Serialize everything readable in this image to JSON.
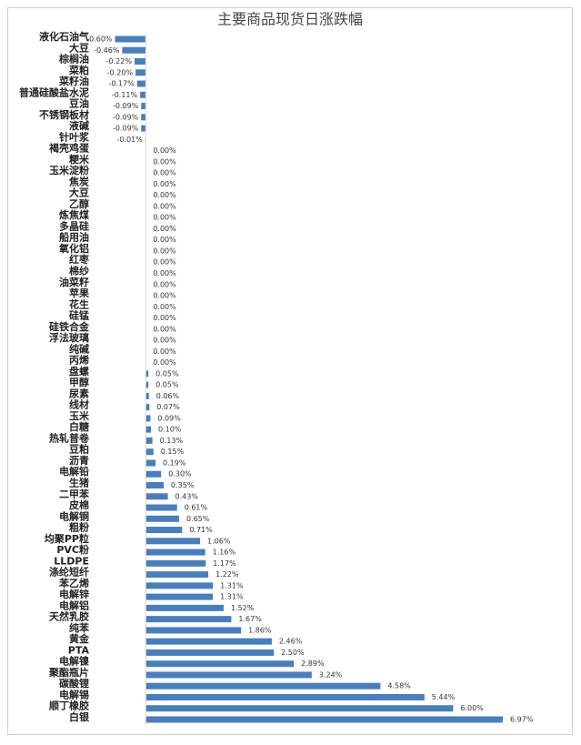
{
  "chart_data": {
    "type": "barh",
    "title": "主要商品现货日涨跌幅",
    "color": "#4a7ebb",
    "categories": [
      "液化石油气",
      "大豆",
      "棕榈油",
      "菜粕",
      "菜籽油",
      "普通硅酸盐水泥",
      "豆油",
      "不锈钢板材",
      "液碱",
      "针叶浆",
      "褐壳鸡蛋",
      "粳米",
      "玉米淀粉",
      "焦炭",
      "大豆",
      "乙醇",
      "炼焦煤",
      "多晶硅",
      "船用油",
      "氧化铝",
      "红枣",
      "棉纱",
      "油菜籽",
      "苹果",
      "花生",
      "硅锰",
      "硅铁合金",
      "浮法玻璃",
      "纯碱",
      "丙烯",
      "盘螺",
      "甲醇",
      "尿素",
      "线材",
      "玉米",
      "白糖",
      "热轧普卷",
      "豆粕",
      "沥青",
      "电解铅",
      "生猪",
      "二甲苯",
      "皮棉",
      "电解铜",
      "粗粉",
      "均聚PP粒",
      "PVC粉",
      "LLDPE",
      "涤纶短纤",
      "苯乙烯",
      "电解锌",
      "电解铝",
      "天然乳胶",
      "纯苯",
      "黄金",
      "PTA",
      "电解镍",
      "聚酯瓶片",
      "碳酸锂",
      "电解锡",
      "顺丁橡胶",
      "白银"
    ],
    "values": [
      -0.6,
      -0.46,
      -0.22,
      -0.2,
      -0.17,
      -0.11,
      -0.09,
      -0.09,
      -0.09,
      -0.01,
      0,
      0,
      0,
      0,
      0,
      0,
      0,
      0,
      0,
      0,
      0,
      0,
      0,
      0,
      0,
      0,
      0,
      0,
      0,
      0,
      0.05,
      0.05,
      0.06,
      0.07,
      0.09,
      0.1,
      0.13,
      0.15,
      0.19,
      0.3,
      0.35,
      0.43,
      0.61,
      0.65,
      0.71,
      1.06,
      1.16,
      1.17,
      1.22,
      1.31,
      1.31,
      1.52,
      1.67,
      1.86,
      2.46,
      2.5,
      2.89,
      3.24,
      4.58,
      5.44,
      6.0,
      6.97
    ],
    "value_labels": [
      "-0.60%",
      "-0.46%",
      "-0.22%",
      "-0.20%",
      "-0.17%",
      "-0.11%",
      "-0.09%",
      "-0.09%",
      "-0.09%",
      "-0.01%",
      "0.00%",
      "0.00%",
      "0.00%",
      "0.00%",
      "0.00%",
      "0.00%",
      "0.00%",
      "0.00%",
      "0.00%",
      "0.00%",
      "0.00%",
      "0.00%",
      "0.00%",
      "0.00%",
      "0.00%",
      "0.00%",
      "0.00%",
      "0.00%",
      "0.00%",
      "0.00%",
      "0.05%",
      "0.05%",
      "0.06%",
      "0.07%",
      "0.09%",
      "0.10%",
      "0.13%",
      "0.15%",
      "0.19%",
      "0.30%",
      "0.35%",
      "0.43%",
      "0.61%",
      "0.65%",
      "0.71%",
      "1.06%",
      "1.16%",
      "1.17%",
      "1.22%",
      "1.31%",
      "1.31%",
      "1.52%",
      "1.67%",
      "1.86%",
      "2.46%",
      "2.50%",
      "2.89%",
      "3.24%",
      "4.58%",
      "5.44%",
      "6.00%",
      "6.97%"
    ],
    "xlim": [
      -1,
      7
    ]
  }
}
